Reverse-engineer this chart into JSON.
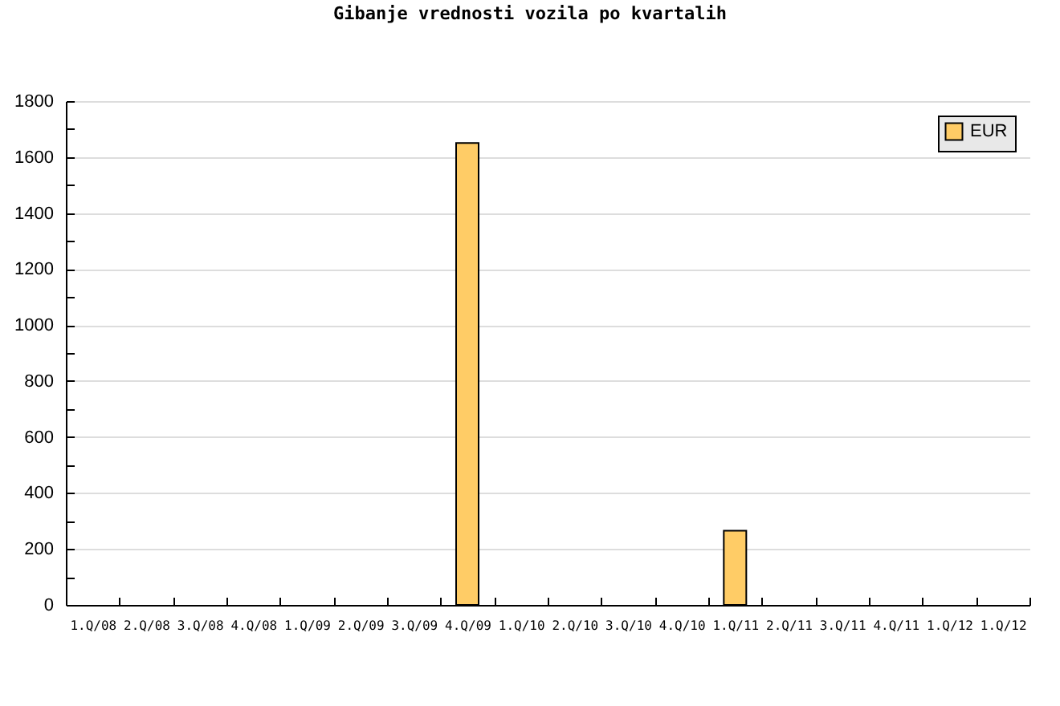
{
  "chart_data": {
    "type": "bar",
    "title": "Gibanje vrednosti vozila po kvartalih",
    "categories": [
      "1.Q/08",
      "2.Q/08",
      "3.Q/08",
      "4.Q/08",
      "1.Q/09",
      "2.Q/09",
      "3.Q/09",
      "4.Q/09",
      "1.Q/10",
      "2.Q/10",
      "3.Q/10",
      "4.Q/10",
      "1.Q/11",
      "2.Q/11",
      "3.Q/11",
      "4.Q/11",
      "1.Q/12",
      "1.Q/12"
    ],
    "series": [
      {
        "name": "EUR",
        "color": "#ffcc66",
        "values": [
          null,
          null,
          null,
          null,
          null,
          null,
          null,
          1650,
          null,
          null,
          null,
          null,
          265,
          null,
          null,
          null,
          null,
          null
        ]
      }
    ],
    "ylim": [
      0,
      1800
    ],
    "yticks": [
      0,
      {
        "value": 100,
        "label": null
      },
      200,
      {
        "value": 300,
        "label": null
      },
      400,
      {
        "value": 500,
        "label": null
      },
      600,
      {
        "value": 700,
        "label": null
      },
      800,
      {
        "value": 900,
        "label": null
      },
      1000,
      {
        "value": 1100,
        "label": null
      },
      1200,
      {
        "value": 1300,
        "label": null
      },
      1400,
      {
        "value": 1500,
        "label": null
      },
      1600,
      {
        "value": 1700,
        "label": null
      },
      1800
    ],
    "grid": "y",
    "legend": "top right"
  }
}
